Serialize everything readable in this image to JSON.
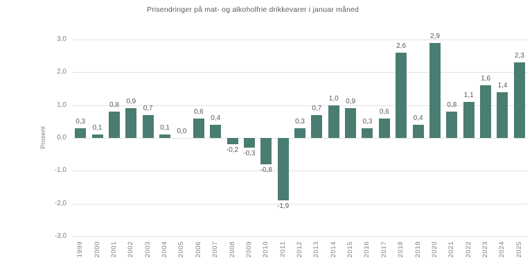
{
  "title": "Prisendringer på mat- og alkoholfrie drikkevarer i januar måned",
  "chart_data": {
    "type": "bar",
    "title": "Prisendringer på mat- og alkoholfrie drikkevarer i januar måned",
    "xlabel": "",
    "ylabel": "Prosent",
    "categories": [
      "1999",
      "2000",
      "2001",
      "2002",
      "2003",
      "2004",
      "2005",
      "2006",
      "2007",
      "2008",
      "2009",
      "2010",
      "2011",
      "2012",
      "2013",
      "2014",
      "2015",
      "2016",
      "2017",
      "2018",
      "2019",
      "2020",
      "2021",
      "2022",
      "2023",
      "2024",
      "2025"
    ],
    "values": [
      0.3,
      0.1,
      0.8,
      0.9,
      0.7,
      0.1,
      0.0,
      0.6,
      0.4,
      -0.2,
      -0.3,
      -0.8,
      -1.9,
      0.3,
      0.7,
      1.0,
      0.9,
      0.3,
      0.6,
      2.6,
      0.4,
      2.9,
      0.8,
      1.1,
      1.6,
      1.4,
      2.3
    ],
    "value_labels": [
      "0,3",
      "0,1",
      "0,8",
      "0,9",
      "0,7",
      "0,1",
      "0,0",
      "0,6",
      "0,4",
      "-0,2",
      "-0,3",
      "-0,8",
      "-1,9",
      "0,3",
      "0,7",
      "1,0",
      "0,9",
      "0,3",
      "0,6",
      "2,6",
      "0,4",
      "2,9",
      "0,8",
      "1,1",
      "1,6",
      "1,4",
      "2,3"
    ],
    "ylim": [
      -3.0,
      3.0
    ],
    "yticks": [
      3.0,
      2.0,
      1.0,
      0.0,
      -1.0,
      -2.0,
      -3.0
    ],
    "ytick_labels": [
      "3,0",
      "2,0",
      "1,0",
      "0,0",
      "-1,0",
      "-2,0",
      "-3,0"
    ],
    "grid": true,
    "legend": false,
    "colors": {
      "bar": "#4a7d72",
      "gridline": "#e2e2e2",
      "title_text": "#595959",
      "value_label_text": "#595959",
      "axis_text": "#808080",
      "background": "#ffffff"
    }
  }
}
